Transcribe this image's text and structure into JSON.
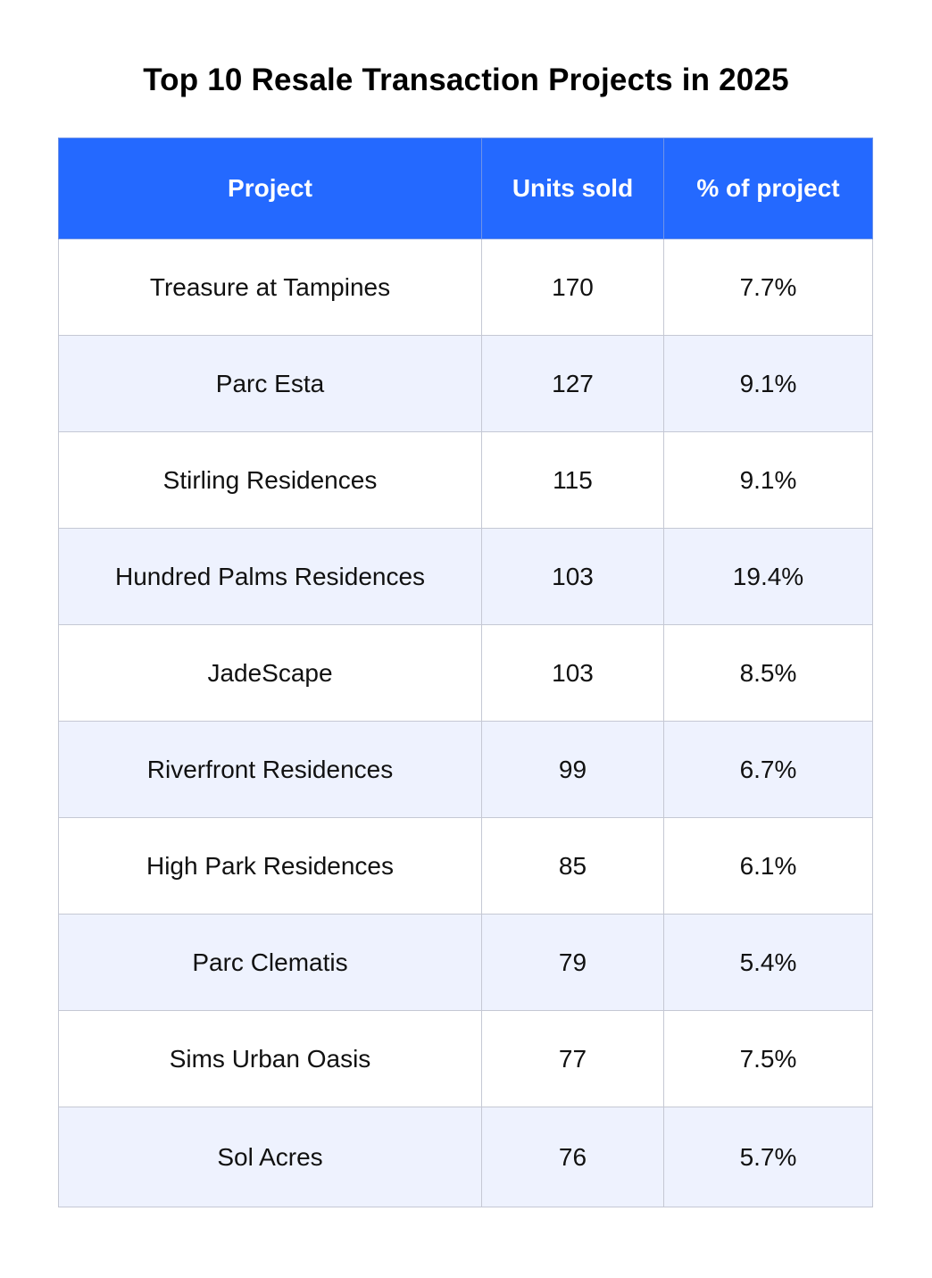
{
  "title": "Top 10 Resale Transaction Projects in 2025",
  "chart_data": {
    "type": "table",
    "title": "Top 10 Resale Transaction Projects in 2025",
    "columns": [
      "Project",
      "Units sold",
      "% of project"
    ],
    "rows": [
      {
        "project": "Treasure at Tampines",
        "units_sold": "170",
        "pct_of_project": "7.7%"
      },
      {
        "project": "Parc Esta",
        "units_sold": "127",
        "pct_of_project": "9.1%"
      },
      {
        "project": "Stirling Residences",
        "units_sold": "115",
        "pct_of_project": "9.1%"
      },
      {
        "project": "Hundred Palms Residences",
        "units_sold": "103",
        "pct_of_project": "19.4%"
      },
      {
        "project": "JadeScape",
        "units_sold": "103",
        "pct_of_project": "8.5%"
      },
      {
        "project": "Riverfront Residences",
        "units_sold": "99",
        "pct_of_project": "6.7%"
      },
      {
        "project": "High Park Residences",
        "units_sold": "85",
        "pct_of_project": "6.1%"
      },
      {
        "project": "Parc Clematis",
        "units_sold": "79",
        "pct_of_project": "5.4%"
      },
      {
        "project": "Sims Urban Oasis",
        "units_sold": "77",
        "pct_of_project": "7.5%"
      },
      {
        "project": "Sol Acres",
        "units_sold": "76",
        "pct_of_project": "5.7%"
      }
    ]
  },
  "colors": {
    "header_background": "#2469ff",
    "header_text": "#ffffff",
    "stripe_background": "#eef2fe",
    "row_background": "#ffffff",
    "border": "#c5c8d4"
  }
}
